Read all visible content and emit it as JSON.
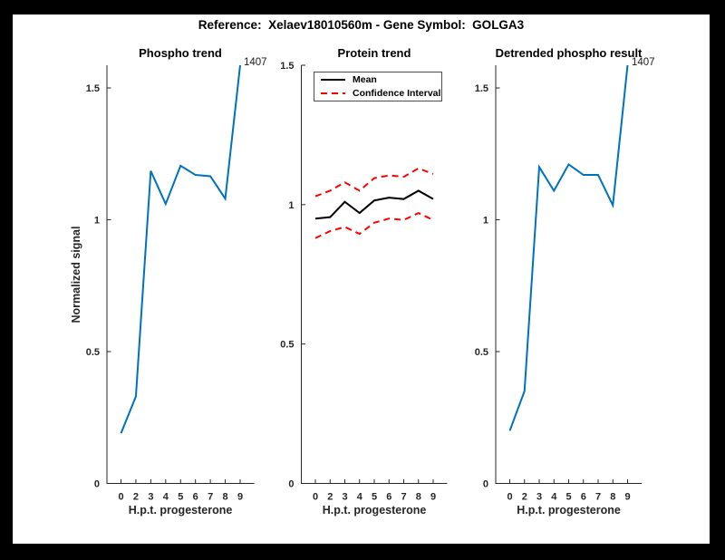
{
  "figure": {
    "title": "Reference:  Xelaev18010560m - Gene Symbol:  GOLGA3",
    "frame_color": "#000000",
    "canvas_color": "#ffffff",
    "axis_color": "#262626",
    "accent_blue": "#0072BD"
  },
  "chart_data": [
    {
      "type": "line",
      "title": "Phospho trend",
      "xlabel": "H.p.t. progesterone",
      "ylabel": "Normalized signal",
      "x_ticklabels": [
        "0",
        "2",
        "3",
        "4",
        "5",
        "6",
        "7",
        "8",
        "9"
      ],
      "yticks": [
        0,
        0.5,
        1,
        1.5
      ],
      "ylim": [
        0,
        1.586
      ],
      "grid": false,
      "series": [
        {
          "name": "phospho-signal",
          "color": "#0072BD",
          "style": "solid",
          "values": [
            0.19,
            0.33,
            1.185,
            1.06,
            1.205,
            1.17,
            1.165,
            1.08,
            1.586
          ]
        }
      ],
      "annotation": "1407"
    },
    {
      "type": "line",
      "title": "Protein trend",
      "xlabel": "H.p.t. progesterone",
      "ylabel": "",
      "x_ticklabels": [
        "0",
        "2",
        "3",
        "4",
        "5",
        "6",
        "7",
        "8",
        "9"
      ],
      "yticks": [
        0,
        0.5,
        1,
        1.5
      ],
      "ylim": [
        0,
        1.5
      ],
      "grid": false,
      "legend": {
        "position": "northwest",
        "entries": [
          {
            "label": "Mean",
            "color": "#000000",
            "style": "solid"
          },
          {
            "label": "Confidence Interval",
            "color": "#FF0000",
            "style": "dashed"
          }
        ]
      },
      "series": [
        {
          "name": "mean",
          "color": "#000000",
          "style": "solid",
          "values": [
            0.95,
            0.955,
            1.01,
            0.97,
            1.015,
            1.025,
            1.02,
            1.05,
            1.02
          ]
        },
        {
          "name": "ci-upper",
          "color": "#FF0000",
          "style": "dashed",
          "values": [
            1.03,
            1.05,
            1.08,
            1.05,
            1.095,
            1.105,
            1.1,
            1.13,
            1.11
          ]
        },
        {
          "name": "ci-lower",
          "color": "#FF0000",
          "style": "dashed",
          "values": [
            0.88,
            0.905,
            0.92,
            0.895,
            0.935,
            0.95,
            0.945,
            0.97,
            0.945
          ]
        }
      ]
    },
    {
      "type": "line",
      "title": "Detrended phospho result",
      "xlabel": "H.p.t. progesterone",
      "ylabel": "",
      "x_ticklabels": [
        "0",
        "2",
        "3",
        "4",
        "5",
        "6",
        "7",
        "8",
        "9"
      ],
      "yticks": [
        0,
        0.5,
        1,
        1.5
      ],
      "ylim": [
        0,
        1.586
      ],
      "grid": false,
      "series": [
        {
          "name": "detrended-phospho",
          "color": "#0072BD",
          "style": "solid",
          "values": [
            0.2,
            0.35,
            1.2,
            1.11,
            1.21,
            1.17,
            1.17,
            1.055,
            1.586
          ]
        }
      ],
      "annotation": "1407"
    }
  ]
}
